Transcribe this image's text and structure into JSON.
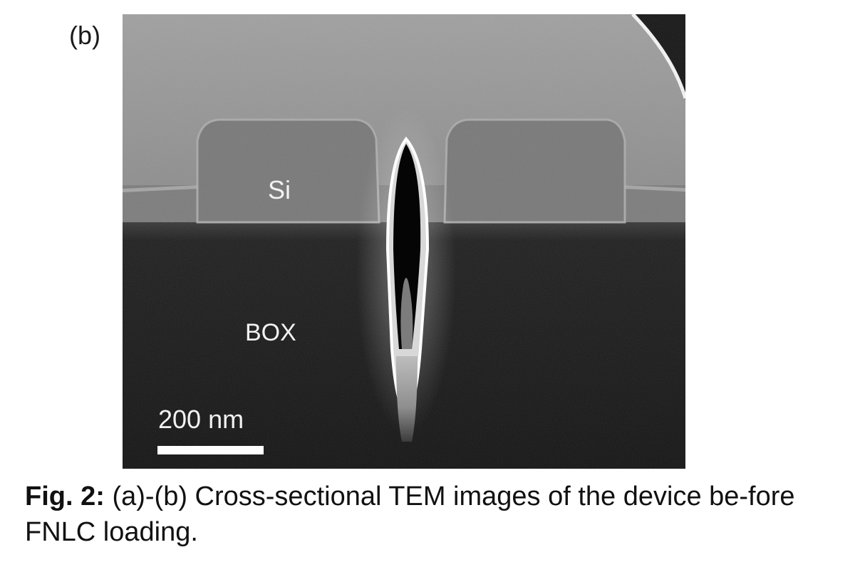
{
  "panel": {
    "label": "(b)"
  },
  "image": {
    "labels": {
      "top_layer": "Si",
      "bottom_layer": "BOX"
    },
    "scale_bar": {
      "label": "200 nm",
      "length_nm": 200
    }
  },
  "caption": {
    "label": "Fig. 2:",
    "text": " (a)-(b) Cross-sectional TEM images of the device be-fore FNLC loading."
  },
  "colors": {
    "background": "#ffffff",
    "oxide_top": "#8e8e8e",
    "silicon": "#7a7a7a",
    "box_oxide": "#141414",
    "caption_text": "#111111"
  }
}
